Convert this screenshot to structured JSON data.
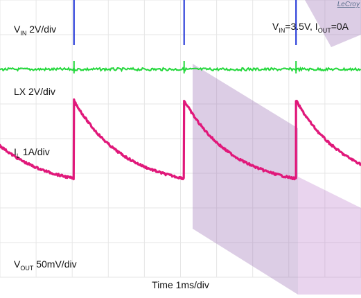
{
  "chart_data": {
    "type": "line",
    "title": "",
    "brand": "LeCroy",
    "conditions": {
      "prefix": "V",
      "vin_sub": "IN",
      "vin_value": "=3.5V, ",
      "iout_prefix": "I",
      "iout_sub": "OUT",
      "iout_value": "=0A"
    },
    "xlabel": "Time  1ms/div",
    "x_divisions": 10,
    "y_divisions": 8,
    "grid": true,
    "pulse_times_div": [
      2.05,
      5.1,
      8.2
    ],
    "series": [
      {
        "key": "vin",
        "label_main": "V",
        "label_sub": "IN",
        "label_rest": "  2V/div",
        "color": "#a89a10",
        "level_div": 5.6,
        "shape": "flat"
      },
      {
        "key": "lx",
        "label_main": "LX  2V/div",
        "label_sub": "",
        "label_rest": "",
        "color": "#1a2fd6",
        "level_div": 4.7,
        "shape": "switching-pulses"
      },
      {
        "key": "il",
        "label_main": "I",
        "label_sub": "L",
        "label_rest": " 1A/div",
        "color": "#22d83a",
        "level_div": 2.0,
        "shape": "near-zero"
      },
      {
        "key": "vout",
        "label_main": "V",
        "label_sub": "OUT",
        "label_rest": " 50mV/div",
        "color": "#e0187a",
        "level_div": 1.1,
        "shape": "sawtooth-decay",
        "peak_div": 1.1,
        "trough_div": -1.15
      }
    ]
  }
}
